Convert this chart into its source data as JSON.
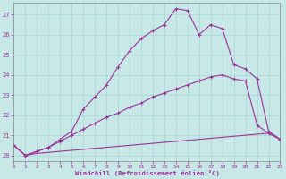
{
  "background_color": "#c8e8e8",
  "grid_color": "#a8d4d4",
  "line_color": "#993399",
  "xlabel": "Windchill (Refroidissement éolien,°C)",
  "xlim": [
    0,
    23
  ],
  "ylim": [
    19.7,
    27.6
  ],
  "yticks": [
    20,
    21,
    22,
    23,
    24,
    25,
    26,
    27
  ],
  "xticks": [
    0,
    1,
    2,
    3,
    4,
    5,
    6,
    7,
    8,
    9,
    10,
    11,
    12,
    13,
    14,
    15,
    16,
    17,
    18,
    19,
    20,
    21,
    22,
    23
  ],
  "curve_flat_x": [
    0,
    1,
    2,
    3,
    4,
    5,
    6,
    7,
    8,
    9,
    10,
    11,
    12,
    13,
    14,
    15,
    16,
    17,
    18,
    19,
    20,
    21,
    22,
    23
  ],
  "curve_flat_y": [
    20.5,
    20.0,
    20.1,
    20.15,
    20.2,
    20.25,
    20.3,
    20.35,
    20.4,
    20.45,
    20.5,
    20.55,
    20.6,
    20.65,
    20.7,
    20.75,
    20.8,
    20.85,
    20.9,
    20.95,
    21.0,
    21.05,
    21.1,
    20.8
  ],
  "curve_mid_x": [
    0,
    1,
    2,
    3,
    4,
    5,
    6,
    7,
    8,
    9,
    10,
    11,
    12,
    13,
    14,
    15,
    16,
    17,
    18,
    19,
    20,
    21,
    22,
    23
  ],
  "curve_mid_y": [
    20.5,
    20.0,
    20.2,
    20.4,
    20.7,
    21.0,
    21.3,
    21.6,
    21.9,
    22.1,
    22.4,
    22.6,
    22.9,
    23.1,
    23.3,
    23.5,
    23.7,
    23.9,
    24.0,
    23.8,
    23.7,
    21.5,
    21.1,
    20.8
  ],
  "curve_top_x": [
    0,
    1,
    2,
    3,
    4,
    5,
    6,
    7,
    8,
    9,
    10,
    11,
    12,
    13,
    14,
    15,
    16,
    17,
    18,
    19,
    20,
    21,
    22,
    23
  ],
  "curve_top_y": [
    20.5,
    20.0,
    20.2,
    20.4,
    20.8,
    21.2,
    22.3,
    22.9,
    23.5,
    24.4,
    25.2,
    25.8,
    26.2,
    26.5,
    27.3,
    27.2,
    26.0,
    26.5,
    26.3,
    24.5,
    24.3,
    23.8,
    21.2,
    20.8
  ]
}
